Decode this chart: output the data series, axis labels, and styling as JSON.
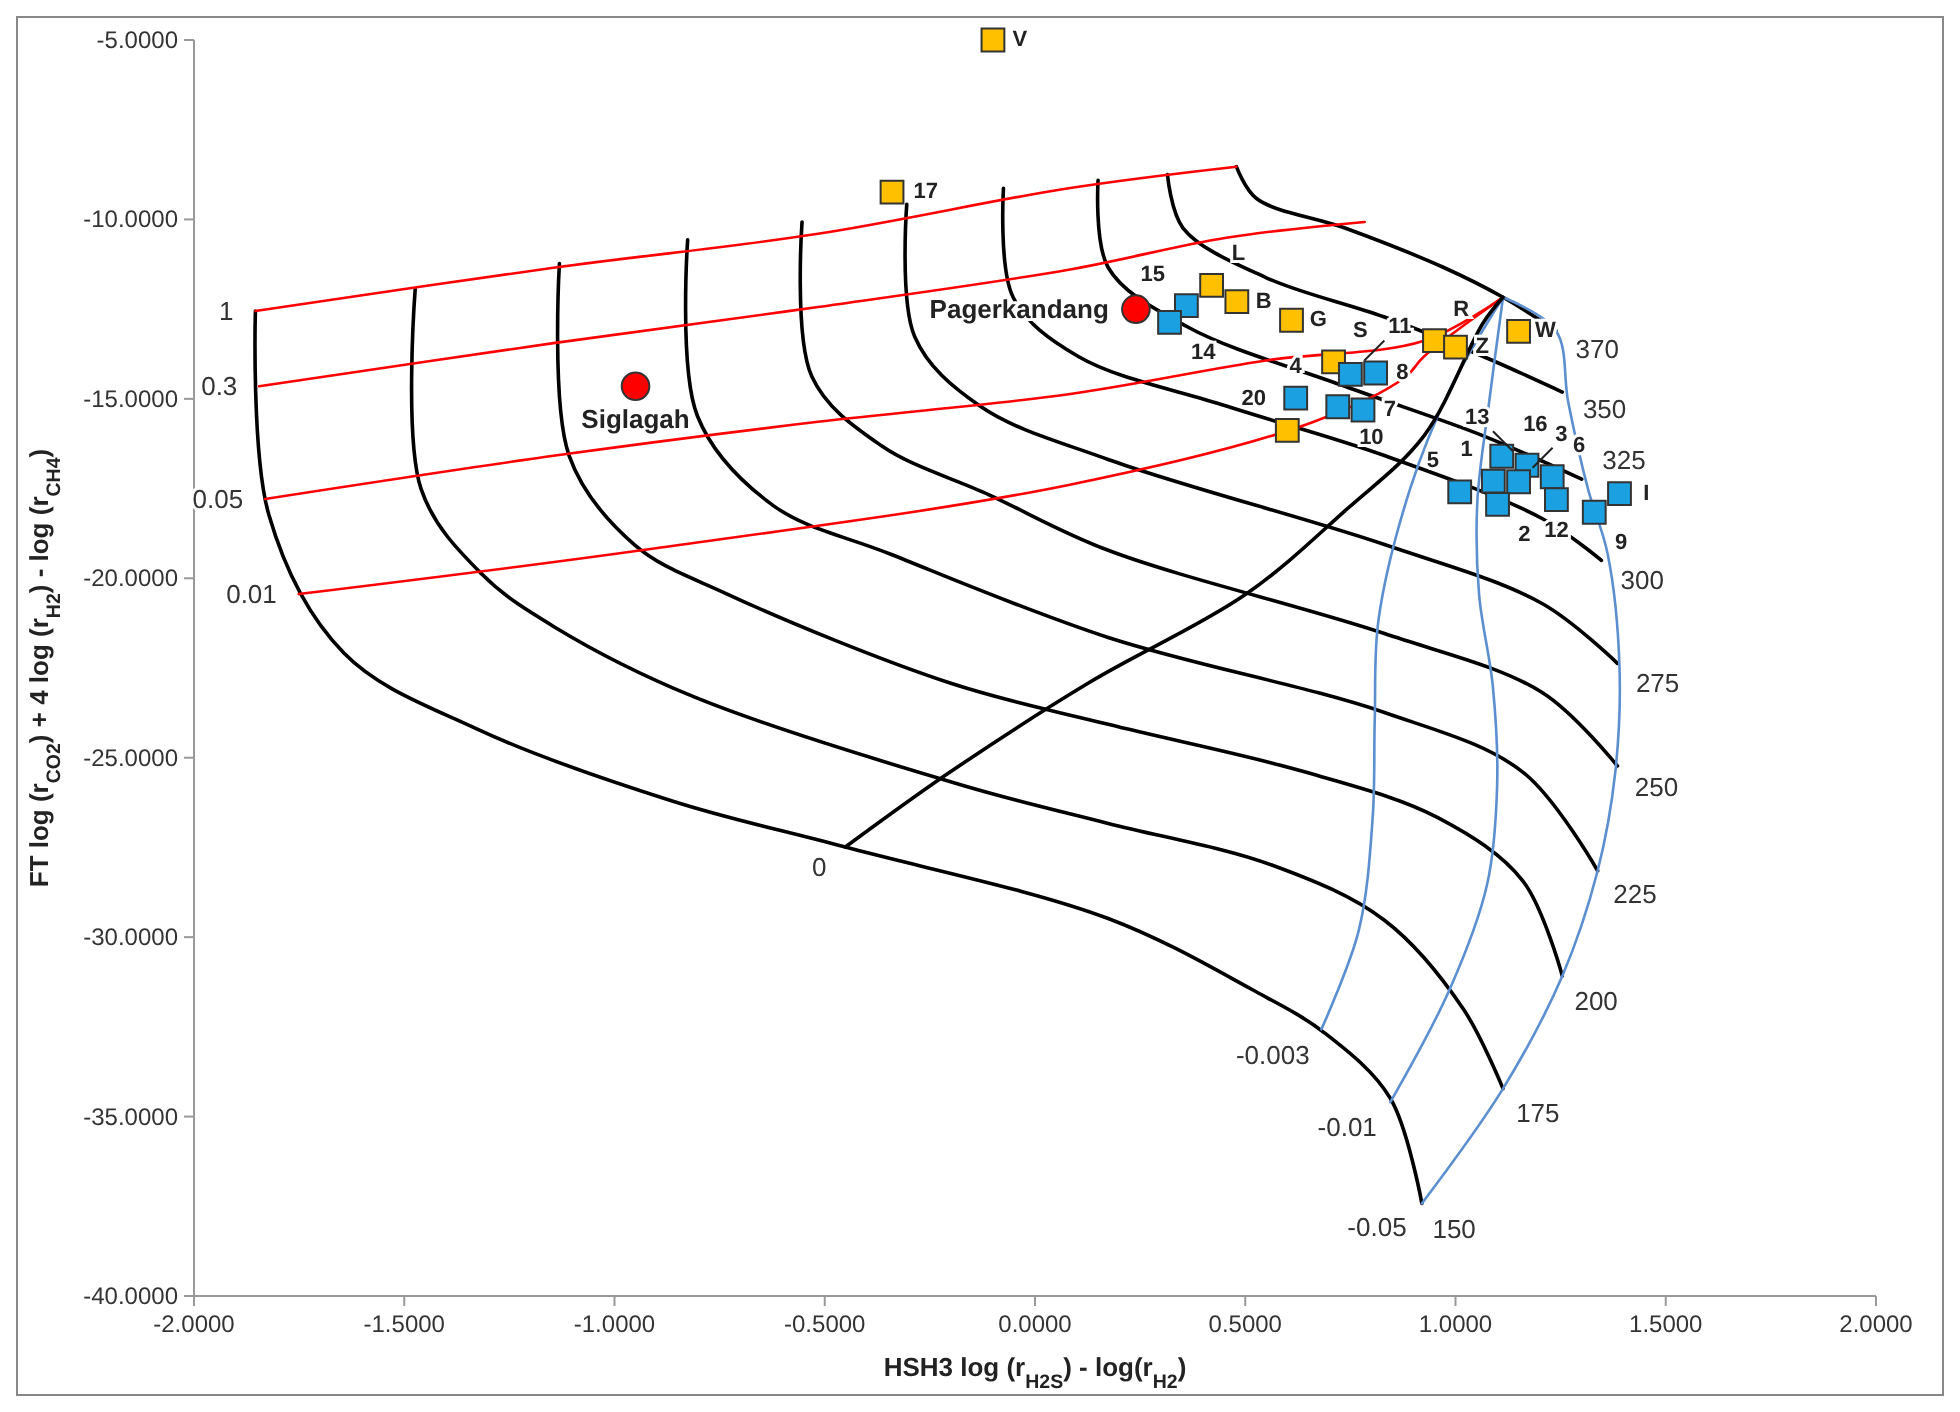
{
  "chart_data": {
    "type": "scatter",
    "xlabel": "HSH3  log (r$_{H2S}$) - log(r$_{H2}$)",
    "ylabel": "FT  log (r$_{CO2}$) + 4 log (r$_{H2}$) - log (r$_{CH4}$)",
    "xlim": [
      -2,
      2
    ],
    "ylim": [
      -40,
      -5
    ],
    "xticks": [
      {
        "value": -2,
        "label": "-2.0000"
      },
      {
        "value": -1.5,
        "label": "-1.5000"
      },
      {
        "value": -1,
        "label": "-1.0000"
      },
      {
        "value": -0.5,
        "label": "-0.5000"
      },
      {
        "value": 0,
        "label": "0.0000"
      },
      {
        "value": 0.5,
        "label": "0.5000"
      },
      {
        "value": 1,
        "label": "1.0000"
      },
      {
        "value": 1.5,
        "label": "1.5000"
      },
      {
        "value": 2,
        "label": "2.0000"
      }
    ],
    "yticks": [
      {
        "value": -40,
        "label": "-40.0000"
      },
      {
        "value": -35,
        "label": "-35.0000"
      },
      {
        "value": -30,
        "label": "-30.0000"
      },
      {
        "value": -25,
        "label": "-25.0000"
      },
      {
        "value": -20,
        "label": "-20.0000"
      },
      {
        "value": -15,
        "label": "-15.0000"
      },
      {
        "value": -10,
        "label": "-10.0000"
      },
      {
        "value": -5,
        "label": "-5.0000"
      }
    ],
    "grid": false,
    "line_style": "solid",
    "series": [
      {
        "name": "150",
        "type": "line",
        "color": "#000000",
        "x": [
          -1.854,
          -1.822,
          -1.643,
          -1.329,
          -0.859,
          -0.451,
          0.174,
          0.516,
          0.69,
          0.845,
          0.92
        ],
        "values": [
          -12.55,
          -18.23,
          -22.09,
          -24.19,
          -26.22,
          -27.49,
          -29.48,
          -31.46,
          -32.68,
          -34.49,
          -37.42
        ]
      },
      {
        "name": "175",
        "type": "line",
        "color": "#000000",
        "x": [
          -1.474,
          -1.46,
          -1.315,
          -1.141,
          -0.812,
          -0.169,
          0.174,
          0.563,
          0.831,
          1.019,
          1.113
        ],
        "values": [
          -11.95,
          -17.51,
          -19.89,
          -21.37,
          -23.3,
          -25.78,
          -26.83,
          -27.99,
          -29.53,
          -32.01,
          -34.22
        ]
      },
      {
        "name": "200",
        "type": "line",
        "color": "#000000",
        "x": [
          -1.131,
          -1.108,
          -0.953,
          -0.732,
          -0.202,
          0.174,
          0.643,
          0.958,
          1.16,
          1.254
        ],
        "values": [
          -11.23,
          -16.58,
          -19.06,
          -20.44,
          -22.92,
          -24.07,
          -25.4,
          -26.67,
          -28.43,
          -31.08
        ]
      },
      {
        "name": "225",
        "type": "line",
        "color": "#000000",
        "x": [
          -0.826,
          -0.803,
          -0.624,
          -0.343,
          0.174,
          0.831,
          1.16,
          1.338
        ],
        "values": [
          -10.57,
          -15.47,
          -17.96,
          -19.33,
          -21.65,
          -23.74,
          -25.4,
          -28.15
        ]
      },
      {
        "name": "250",
        "type": "line",
        "color": "#000000",
        "x": [
          -0.554,
          -0.531,
          -0.366,
          -0.108,
          0.174,
          0.831,
          1.207,
          1.385
        ],
        "values": [
          -10.07,
          -14.37,
          -16.3,
          -17.68,
          -19.22,
          -21.54,
          -23.19,
          -25.23
        ]
      },
      {
        "name": "275",
        "type": "line",
        "color": "#000000",
        "x": [
          -0.305,
          -0.286,
          -0.131,
          0.174,
          0.831,
          1.207,
          1.385
        ],
        "values": [
          -9.58,
          -13.27,
          -15.2,
          -16.69,
          -19.06,
          -20.71,
          -22.37
        ]
      },
      {
        "name": "300",
        "type": "line",
        "color": "#000000",
        "x": [
          -0.075,
          -0.052,
          0.103,
          0.455,
          0.831,
          1.207,
          1.347
        ],
        "values": [
          -9.13,
          -12.17,
          -13.82,
          -15.2,
          -16.58,
          -18.34,
          -19.5
        ]
      },
      {
        "name": "325",
        "type": "line",
        "color": "#000000",
        "x": [
          0.15,
          0.174,
          0.362,
          0.737,
          1.066,
          1.3
        ],
        "values": [
          -8.91,
          -11.34,
          -12.99,
          -14.65,
          -16.03,
          -17.24
        ]
      },
      {
        "name": "350",
        "type": "line",
        "color": "#000000",
        "x": [
          0.315,
          0.352,
          0.549,
          0.831,
          1.066,
          1.254
        ],
        "values": [
          -8.75,
          -10.24,
          -11.62,
          -12.72,
          -13.82,
          -14.81
        ]
      },
      {
        "name": "370",
        "type": "line",
        "color": "#000000",
        "x": [
          0.479,
          0.526,
          0.737,
          0.972,
          1.113,
          1.239
        ],
        "values": [
          -8.53,
          -9.41,
          -10.24,
          -11.34,
          -12.17,
          -13.1
        ]
      },
      {
        "name": "1",
        "type": "line",
        "color": "#ff0000",
        "x": [
          0.479,
          0.08,
          -0.516,
          -1.141,
          -1.854
        ],
        "values": [
          -8.53,
          -9.13,
          -10.4,
          -11.34,
          -12.55
        ]
      },
      {
        "name": "0.3",
        "type": "line",
        "color": "#ff0000",
        "x": [
          0.784,
          0.455,
          0.08,
          -0.516,
          -1.141,
          -1.845
        ],
        "values": [
          -10.07,
          -10.51,
          -11.4,
          -12.44,
          -13.44,
          -14.65
        ]
      },
      {
        "name": "0.05",
        "type": "line",
        "color": "#ff0000",
        "x": [
          1.113,
          0.925,
          0.549,
          0.08,
          -0.516,
          -1.141,
          -1.831
        ],
        "values": [
          -12.17,
          -13.38,
          -13.93,
          -14.87,
          -15.64,
          -16.58,
          -17.79
        ]
      },
      {
        "name": "0.01",
        "type": "line",
        "color": "#ff0000",
        "x": [
          1.113,
          0.925,
          0.88,
          0.66,
          0.08,
          -0.906,
          -1.751
        ],
        "values": [
          -12.17,
          -13.82,
          -14.4,
          -15.65,
          -17.4,
          -19.17,
          -20.44
        ]
      },
      {
        "name": "-0.003",
        "type": "line",
        "color": "#5b8fd0",
        "x": [
          1.113,
          0.986,
          0.892,
          0.817,
          0.808,
          0.803,
          0.77,
          0.681
        ],
        "values": [
          -12.17,
          -14.76,
          -17.51,
          -21.15,
          -23.91,
          -26.67,
          -29.81,
          -32.57
        ]
      },
      {
        "name": "-0.01",
        "type": "line",
        "color": "#5b8fd0",
        "x": [
          1.113,
          1.08,
          1.052,
          1.056,
          1.089,
          1.099,
          1.075,
          0.986,
          0.845
        ],
        "values": [
          -12.17,
          -15.09,
          -17.85,
          -20.44,
          -23.03,
          -25.78,
          -28.54,
          -31.46,
          -34.6
        ]
      },
      {
        "name": "-0.05",
        "type": "line",
        "color": "#5b8fd0",
        "x": [
          1.113,
          1.239,
          1.268,
          1.315,
          1.362,
          1.39,
          1.38,
          1.338,
          1.254,
          1.113,
          0.92
        ],
        "values": [
          -12.17,
          -13.1,
          -15.09,
          -17.51,
          -19.33,
          -22.48,
          -25.4,
          -28.15,
          -31.08,
          -34.22,
          -37.42
        ]
      },
      {
        "name": "0",
        "type": "line",
        "color": "#000000",
        "x": [
          1.113,
          1.066,
          0.925,
          0.737,
          0.502,
          0.127,
          -0.202,
          -0.451
        ],
        "values": [
          -12.17,
          -12.88,
          -16.03,
          -18.12,
          -20.44,
          -22.92,
          -25.4,
          -27.49
        ]
      },
      {
        "marker": "square",
        "color": "#ffc000",
        "x": [
          -0.1,
          -0.34,
          0.42,
          0.48,
          0.61,
          0.95,
          1.0,
          1.15,
          0.71,
          0.6
        ],
        "values": [
          -5.0,
          -9.24,
          -11.84,
          -12.29,
          -12.81,
          -13.38,
          -13.56,
          -13.12,
          -13.97,
          -15.88
        ]
      },
      {
        "marker": "square",
        "color": "#1ba1e2",
        "x": [
          0.36,
          0.32,
          0.75,
          0.81,
          0.62,
          0.72,
          0.78,
          1.11,
          1.17,
          1.09,
          1.15,
          1.23,
          1.01,
          1.1,
          1.24,
          1.33,
          1.39
        ],
        "values": [
          -12.4,
          -12.87,
          -14.32,
          -14.28,
          -14.98,
          -15.22,
          -15.31,
          -16.6,
          -16.85,
          -17.29,
          -17.31,
          -17.17,
          -17.59,
          -17.94,
          -17.81,
          -18.16,
          -17.64
        ]
      },
      {
        "marker": "circle",
        "color": "#ff0000",
        "x": [
          -0.95,
          0.24
        ],
        "values": [
          -14.65,
          -12.5
        ]
      }
    ],
    "annotations": [
      {
        "text": "V",
        "x": -0.1,
        "y": -5.0
      },
      {
        "text": "17",
        "x": -0.34,
        "y": -9.24
      },
      {
        "text": "L",
        "x": 0.42,
        "y": -11.84
      },
      {
        "text": "B",
        "x": 0.48,
        "y": -12.29
      },
      {
        "text": "G",
        "x": 0.61,
        "y": -12.81
      },
      {
        "text": "R",
        "x": 0.95,
        "y": -13.38
      },
      {
        "text": "Z",
        "x": 1.0,
        "y": -13.56
      },
      {
        "text": "W",
        "x": 1.15,
        "y": -13.12
      },
      {
        "text": "S",
        "x": 0.71,
        "y": -13.97
      },
      {
        "text": "20",
        "x": 0.6,
        "y": -15.88
      },
      {
        "text": "15",
        "x": 0.36,
        "y": -12.4
      },
      {
        "text": "14",
        "x": 0.32,
        "y": -12.87
      },
      {
        "text": "11",
        "x": 0.75,
        "y": -14.32
      },
      {
        "text": "8",
        "x": 0.81,
        "y": -14.28
      },
      {
        "text": "4",
        "x": 0.62,
        "y": -14.98
      },
      {
        "text": "10",
        "x": 0.72,
        "y": -15.22
      },
      {
        "text": "7",
        "x": 0.78,
        "y": -15.31
      },
      {
        "text": "16",
        "x": 1.11,
        "y": -16.6
      },
      {
        "text": "13",
        "x": 1.17,
        "y": -16.85
      },
      {
        "text": "1",
        "x": 1.09,
        "y": -17.29
      },
      {
        "text": "3",
        "x": 1.15,
        "y": -17.31
      },
      {
        "text": "6",
        "x": 1.23,
        "y": -17.17
      },
      {
        "text": "5",
        "x": 1.01,
        "y": -17.59
      },
      {
        "text": "2",
        "x": 1.1,
        "y": -17.94
      },
      {
        "text": "12",
        "x": 1.24,
        "y": -17.81
      },
      {
        "text": "9",
        "x": 1.33,
        "y": -18.16
      },
      {
        "text": "I",
        "x": 1.39,
        "y": -17.64
      },
      {
        "text": "Siglagah",
        "x": -0.95,
        "y": -14.65
      },
      {
        "text": "Pagerkandang",
        "x": 0.24,
        "y": -12.5
      }
    ]
  }
}
